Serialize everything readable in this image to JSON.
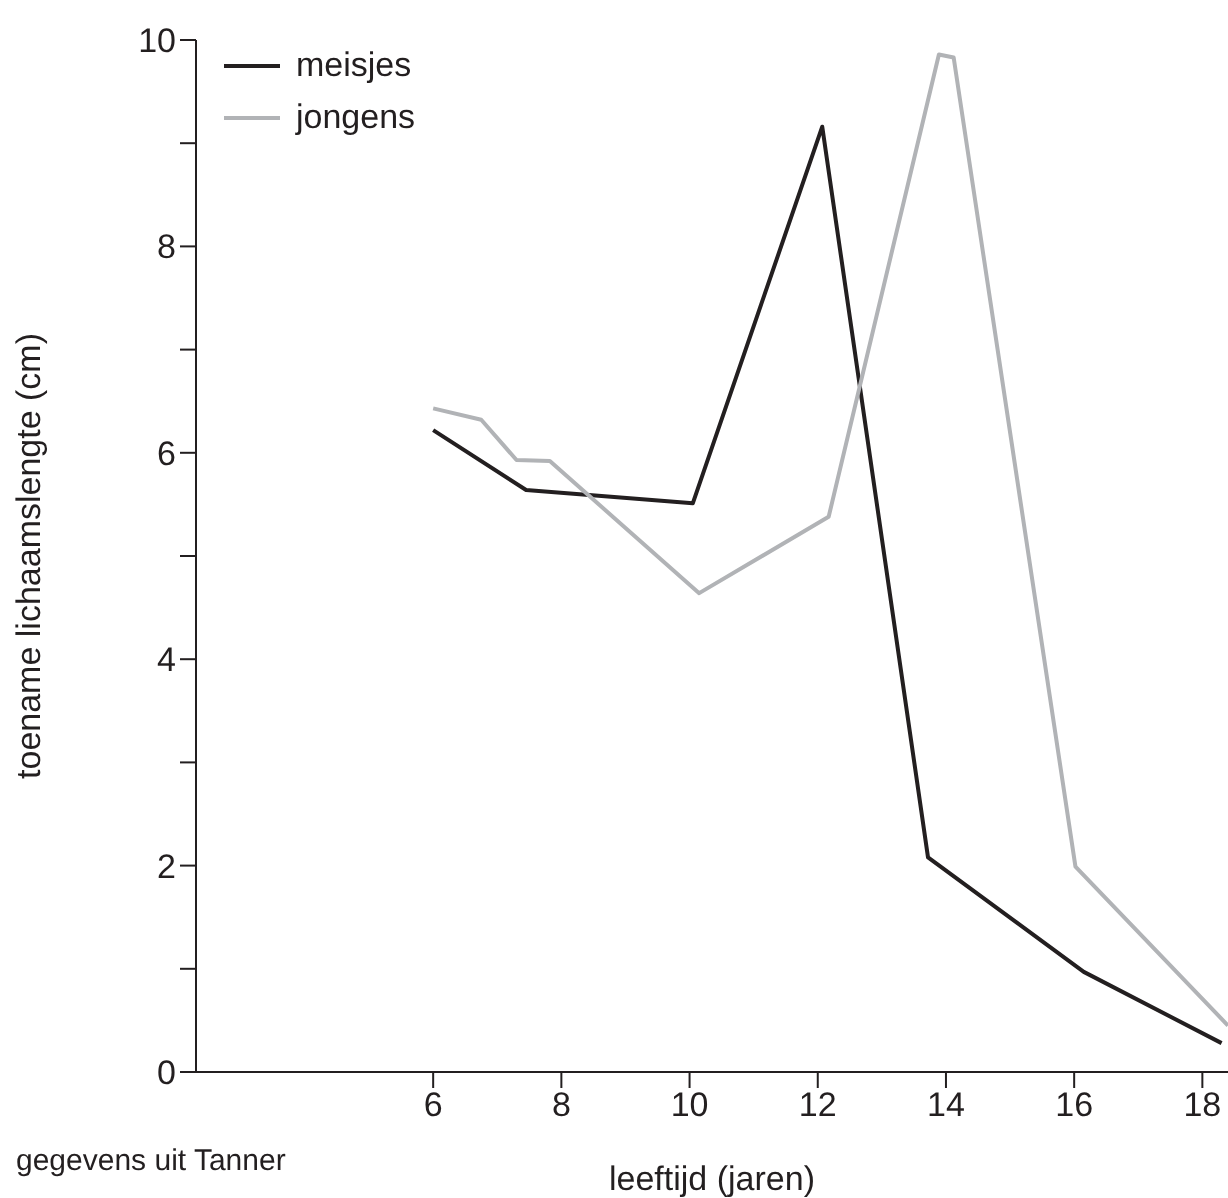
{
  "chart_data": {
    "type": "line",
    "xlabel": "leeftijd (jaren)",
    "ylabel": "toename lichaamslengte (cm)",
    "annotations": [
      "gegevens uit Tanner"
    ],
    "xlim": [
      2.3,
      18.4
    ],
    "xticks": [
      6,
      8,
      10,
      12,
      14,
      16,
      18
    ],
    "ylim": [
      0,
      10
    ],
    "yticks": [
      0,
      {
        "value": 1,
        "label": null
      },
      2,
      {
        "value": 3,
        "label": null
      },
      4,
      {
        "value": 5,
        "label": null
      },
      6,
      {
        "value": 7,
        "label": null
      },
      8,
      {
        "value": 9,
        "label": null
      },
      10
    ],
    "grid": false,
    "legend": "top left",
    "marker": "none",
    "line_style": "solid",
    "series": [
      {
        "name": "meisjes",
        "color": "#231f20",
        "x": [
          6.0,
          7.45,
          10.05,
          12.07,
          13.72,
          16.15,
          18.3
        ],
        "values": [
          6.22,
          5.64,
          5.51,
          9.16,
          2.08,
          0.97,
          0.28
        ]
      },
      {
        "name": "jongens",
        "color": "#b1b3b6",
        "x": [
          6.0,
          6.75,
          7.3,
          7.82,
          10.15,
          12.17,
          13.89,
          14.12,
          16.02,
          18.4
        ],
        "values": [
          6.43,
          6.32,
          5.93,
          5.92,
          4.64,
          5.38,
          9.86,
          9.83,
          1.99,
          0.45
        ]
      }
    ]
  }
}
